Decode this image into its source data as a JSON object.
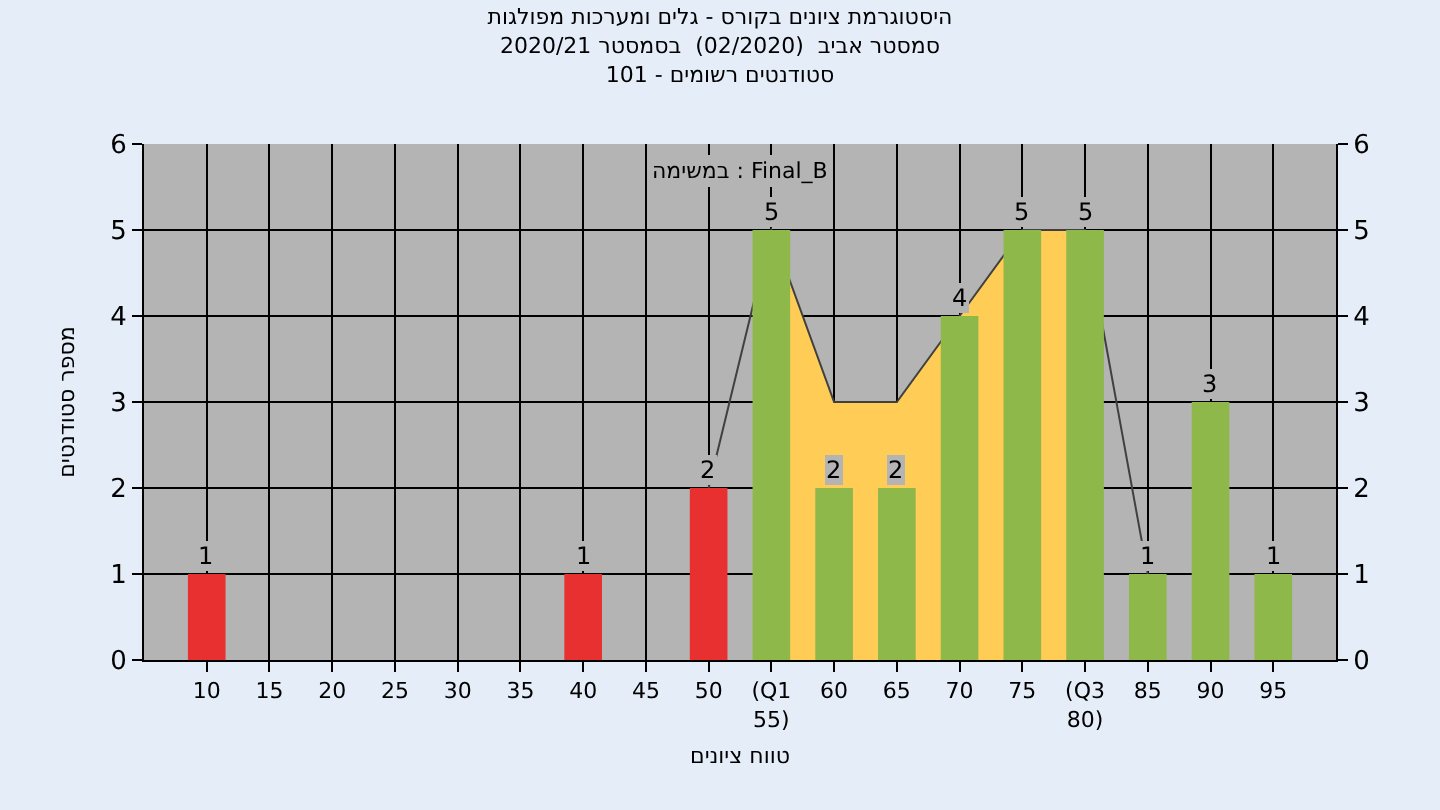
{
  "chart_data": {
    "type": "bar",
    "title": "היסטוגרמת ציונים בקורס - גלים ומערכות מפולגות\n2020/21 סמסטר אביב  (02/2020)  בסמסטר\nסטודנטים רשומים - 101",
    "xlabel": "טווח ציונים",
    "ylabel": "מספר סטודנטים",
    "annotations": [
      "במשימה : Final_B"
    ],
    "series": [
      {
        "type": "area",
        "color": "#ffcc55",
        "x": [
          55,
          60,
          65,
          70,
          75,
          80
        ],
        "values": [
          5,
          3,
          3,
          4,
          5,
          5
        ]
      },
      {
        "type": "line",
        "color": "#404040",
        "x": [
          50,
          55,
          60,
          65,
          70,
          75,
          80,
          85
        ],
        "values": [
          2,
          5,
          3,
          3,
          4,
          5,
          5,
          1
        ]
      },
      {
        "x": [
          10,
          40,
          50,
          55,
          60,
          65,
          70,
          75,
          80,
          85,
          90,
          95
        ],
        "values": [
          1,
          1,
          2,
          5,
          2,
          2,
          4,
          5,
          5,
          1,
          3,
          1
        ],
        "value_labels": [
          "1",
          "1",
          "2",
          "5",
          "2",
          "2",
          "4",
          "5",
          "5",
          "1",
          "3",
          "1"
        ],
        "colors": [
          "#e83030",
          "#e83030",
          "#e83030",
          "#8fb84a",
          "#8fb84a",
          "#8fb84a",
          "#8fb84a",
          "#8fb84a",
          "#8fb84a",
          "#8fb84a",
          "#8fb84a",
          "#8fb84a"
        ]
      }
    ],
    "xlim": [
      5,
      100
    ],
    "xticks": [
      10,
      15,
      20,
      25,
      30,
      35,
      40,
      45,
      50,
      {
        "value": 55,
        "label": "(Q1 55)"
      },
      60,
      65,
      70,
      75,
      {
        "value": 80,
        "label": "(Q3 80)"
      },
      85,
      90,
      95
    ],
    "ylim": [
      0,
      6
    ],
    "yticks": [
      0,
      1,
      2,
      3,
      4,
      5,
      6
    ],
    "y2lim": [
      0,
      6
    ],
    "y2ticks": [
      0,
      1,
      2,
      3,
      4,
      5,
      6
    ],
    "grid": true
  }
}
